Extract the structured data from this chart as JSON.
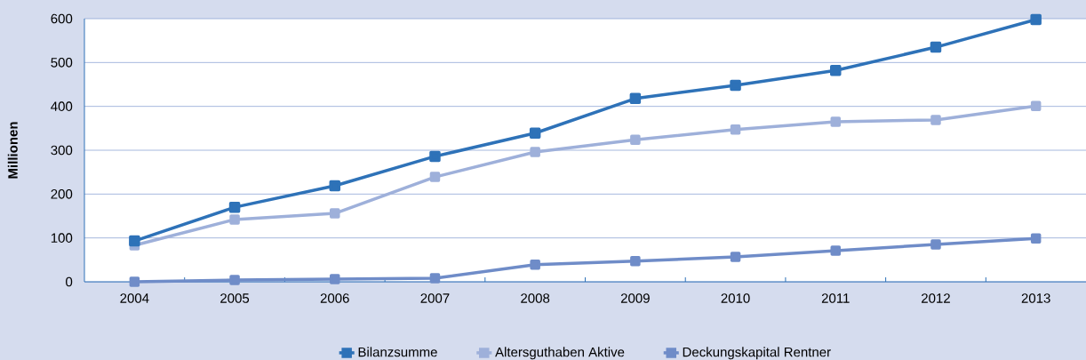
{
  "chart_data": {
    "type": "line",
    "ylabel": "Millionen",
    "categories": [
      "2004",
      "2005",
      "2006",
      "2007",
      "2008",
      "2009",
      "2010",
      "2011",
      "2012",
      "2013"
    ],
    "ylim": [
      0,
      600
    ],
    "yticks": [
      0,
      100,
      200,
      300,
      400,
      500,
      600
    ],
    "grid": "y",
    "legend": "bottom",
    "marker": "square",
    "line_style": "solid",
    "series": [
      {
        "name": "Bilanzsumme",
        "color": "#2e72b8",
        "values": [
          93,
          170,
          219,
          286,
          339,
          418,
          448,
          482,
          535,
          598
        ]
      },
      {
        "name": "Altersguthaben Aktive",
        "color": "#9eb0da",
        "values": [
          83,
          142,
          156,
          239,
          296,
          324,
          347,
          365,
          369,
          401
        ]
      },
      {
        "name": "Deckungskapital Rentner",
        "color": "#6f8cc8",
        "values": [
          0,
          4,
          6,
          8,
          39,
          47,
          57,
          71,
          85,
          99
        ]
      }
    ]
  }
}
